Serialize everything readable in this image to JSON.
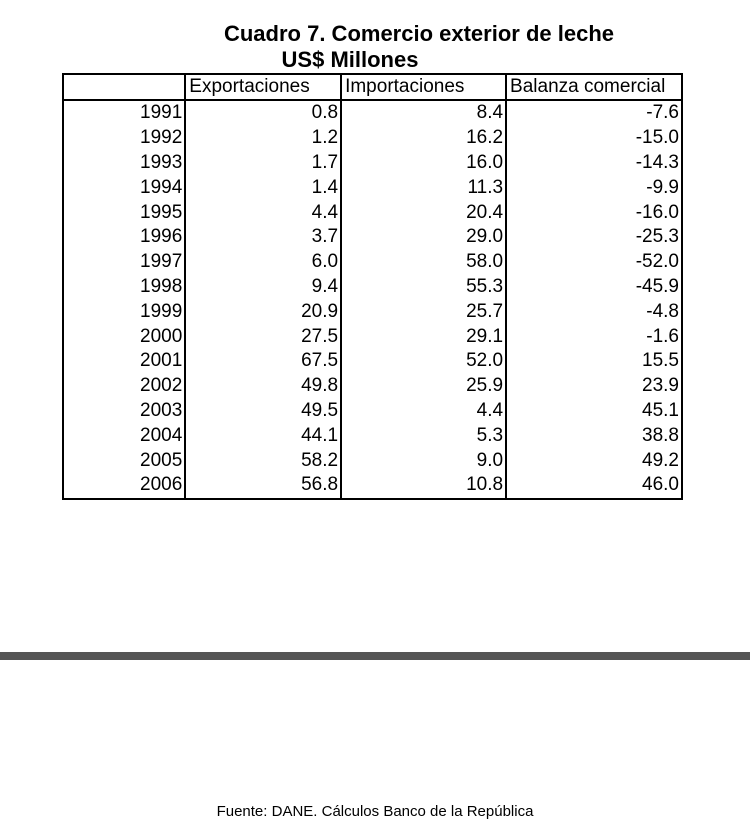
{
  "title": "Cuadro 7. Comercio exterior de leche",
  "subtitle": "US$ Millones",
  "table": {
    "headers": [
      "",
      "Exportaciones",
      "Importaciones",
      "Balanza comercial"
    ],
    "rows": [
      [
        "1991",
        "0.8",
        "8.4",
        "-7.6"
      ],
      [
        "1992",
        "1.2",
        "16.2",
        "-15.0"
      ],
      [
        "1993",
        "1.7",
        "16.0",
        "-14.3"
      ],
      [
        "1994",
        "1.4",
        "11.3",
        "-9.9"
      ],
      [
        "1995",
        "4.4",
        "20.4",
        "-16.0"
      ],
      [
        "1996",
        "3.7",
        "29.0",
        "-25.3"
      ],
      [
        "1997",
        "6.0",
        "58.0",
        "-52.0"
      ],
      [
        "1998",
        "9.4",
        "55.3",
        "-45.9"
      ],
      [
        "1999",
        "20.9",
        "25.7",
        "-4.8"
      ],
      [
        "2000",
        "27.5",
        "29.1",
        "-1.6"
      ],
      [
        "2001",
        "67.5",
        "52.0",
        "15.5"
      ],
      [
        "2002",
        "49.8",
        "25.9",
        "23.9"
      ],
      [
        "2003",
        "49.5",
        "4.4",
        "45.1"
      ],
      [
        "2004",
        "44.1",
        "5.3",
        "38.8"
      ],
      [
        "2005",
        "58.2",
        "9.0",
        "49.2"
      ],
      [
        "2006",
        "56.8",
        "10.8",
        "46.0"
      ]
    ]
  },
  "source": "Fuente: DANE. Cálculos Banco de la República",
  "colors": {
    "separator_bar": "#555555"
  }
}
